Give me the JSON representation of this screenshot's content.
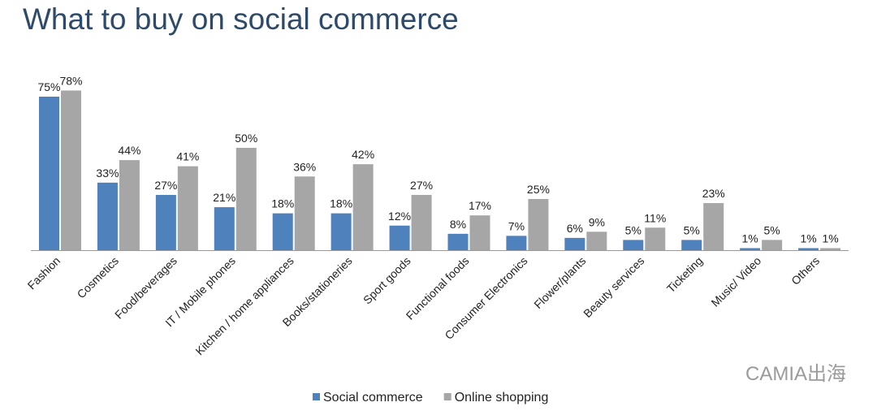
{
  "chart_data": {
    "type": "bar",
    "title": "What to buy on social commerce",
    "categories": [
      "Fashion",
      "Cosmetics",
      "Food/beverages",
      "IT / Mobile phones",
      "Kitchen / home appliances",
      "Books/stationeries",
      "Sport goods",
      "Functional foods",
      "Consumer Electronics",
      "Flower/plants",
      "Beauty services",
      "Ticketing",
      "Music/ Video",
      "Others"
    ],
    "series": [
      {
        "name": "Social commerce",
        "color": "#4f81bd",
        "values": [
          75,
          33,
          27,
          21,
          18,
          18,
          12,
          8,
          7,
          6,
          5,
          5,
          1,
          1
        ],
        "value_labels": [
          "75%",
          "33%",
          "27%",
          "21%",
          "18%",
          "18%",
          "12%",
          "8%",
          "7%",
          "6%",
          "5%",
          "5%",
          "1%",
          "1%"
        ]
      },
      {
        "name": "Online shopping",
        "color": "#a6a6a6",
        "values": [
          78,
          44,
          41,
          50,
          36,
          42,
          27,
          17,
          25,
          9,
          11,
          23,
          5,
          1
        ],
        "value_labels": [
          "78%",
          "44%",
          "41%",
          "50%",
          "36%",
          "42%",
          "27%",
          "17%",
          "25%",
          "9%",
          "11%",
          "23%",
          "5%",
          "1%"
        ]
      }
    ],
    "legend": "bottom",
    "watermark": "CAMIA出海"
  }
}
